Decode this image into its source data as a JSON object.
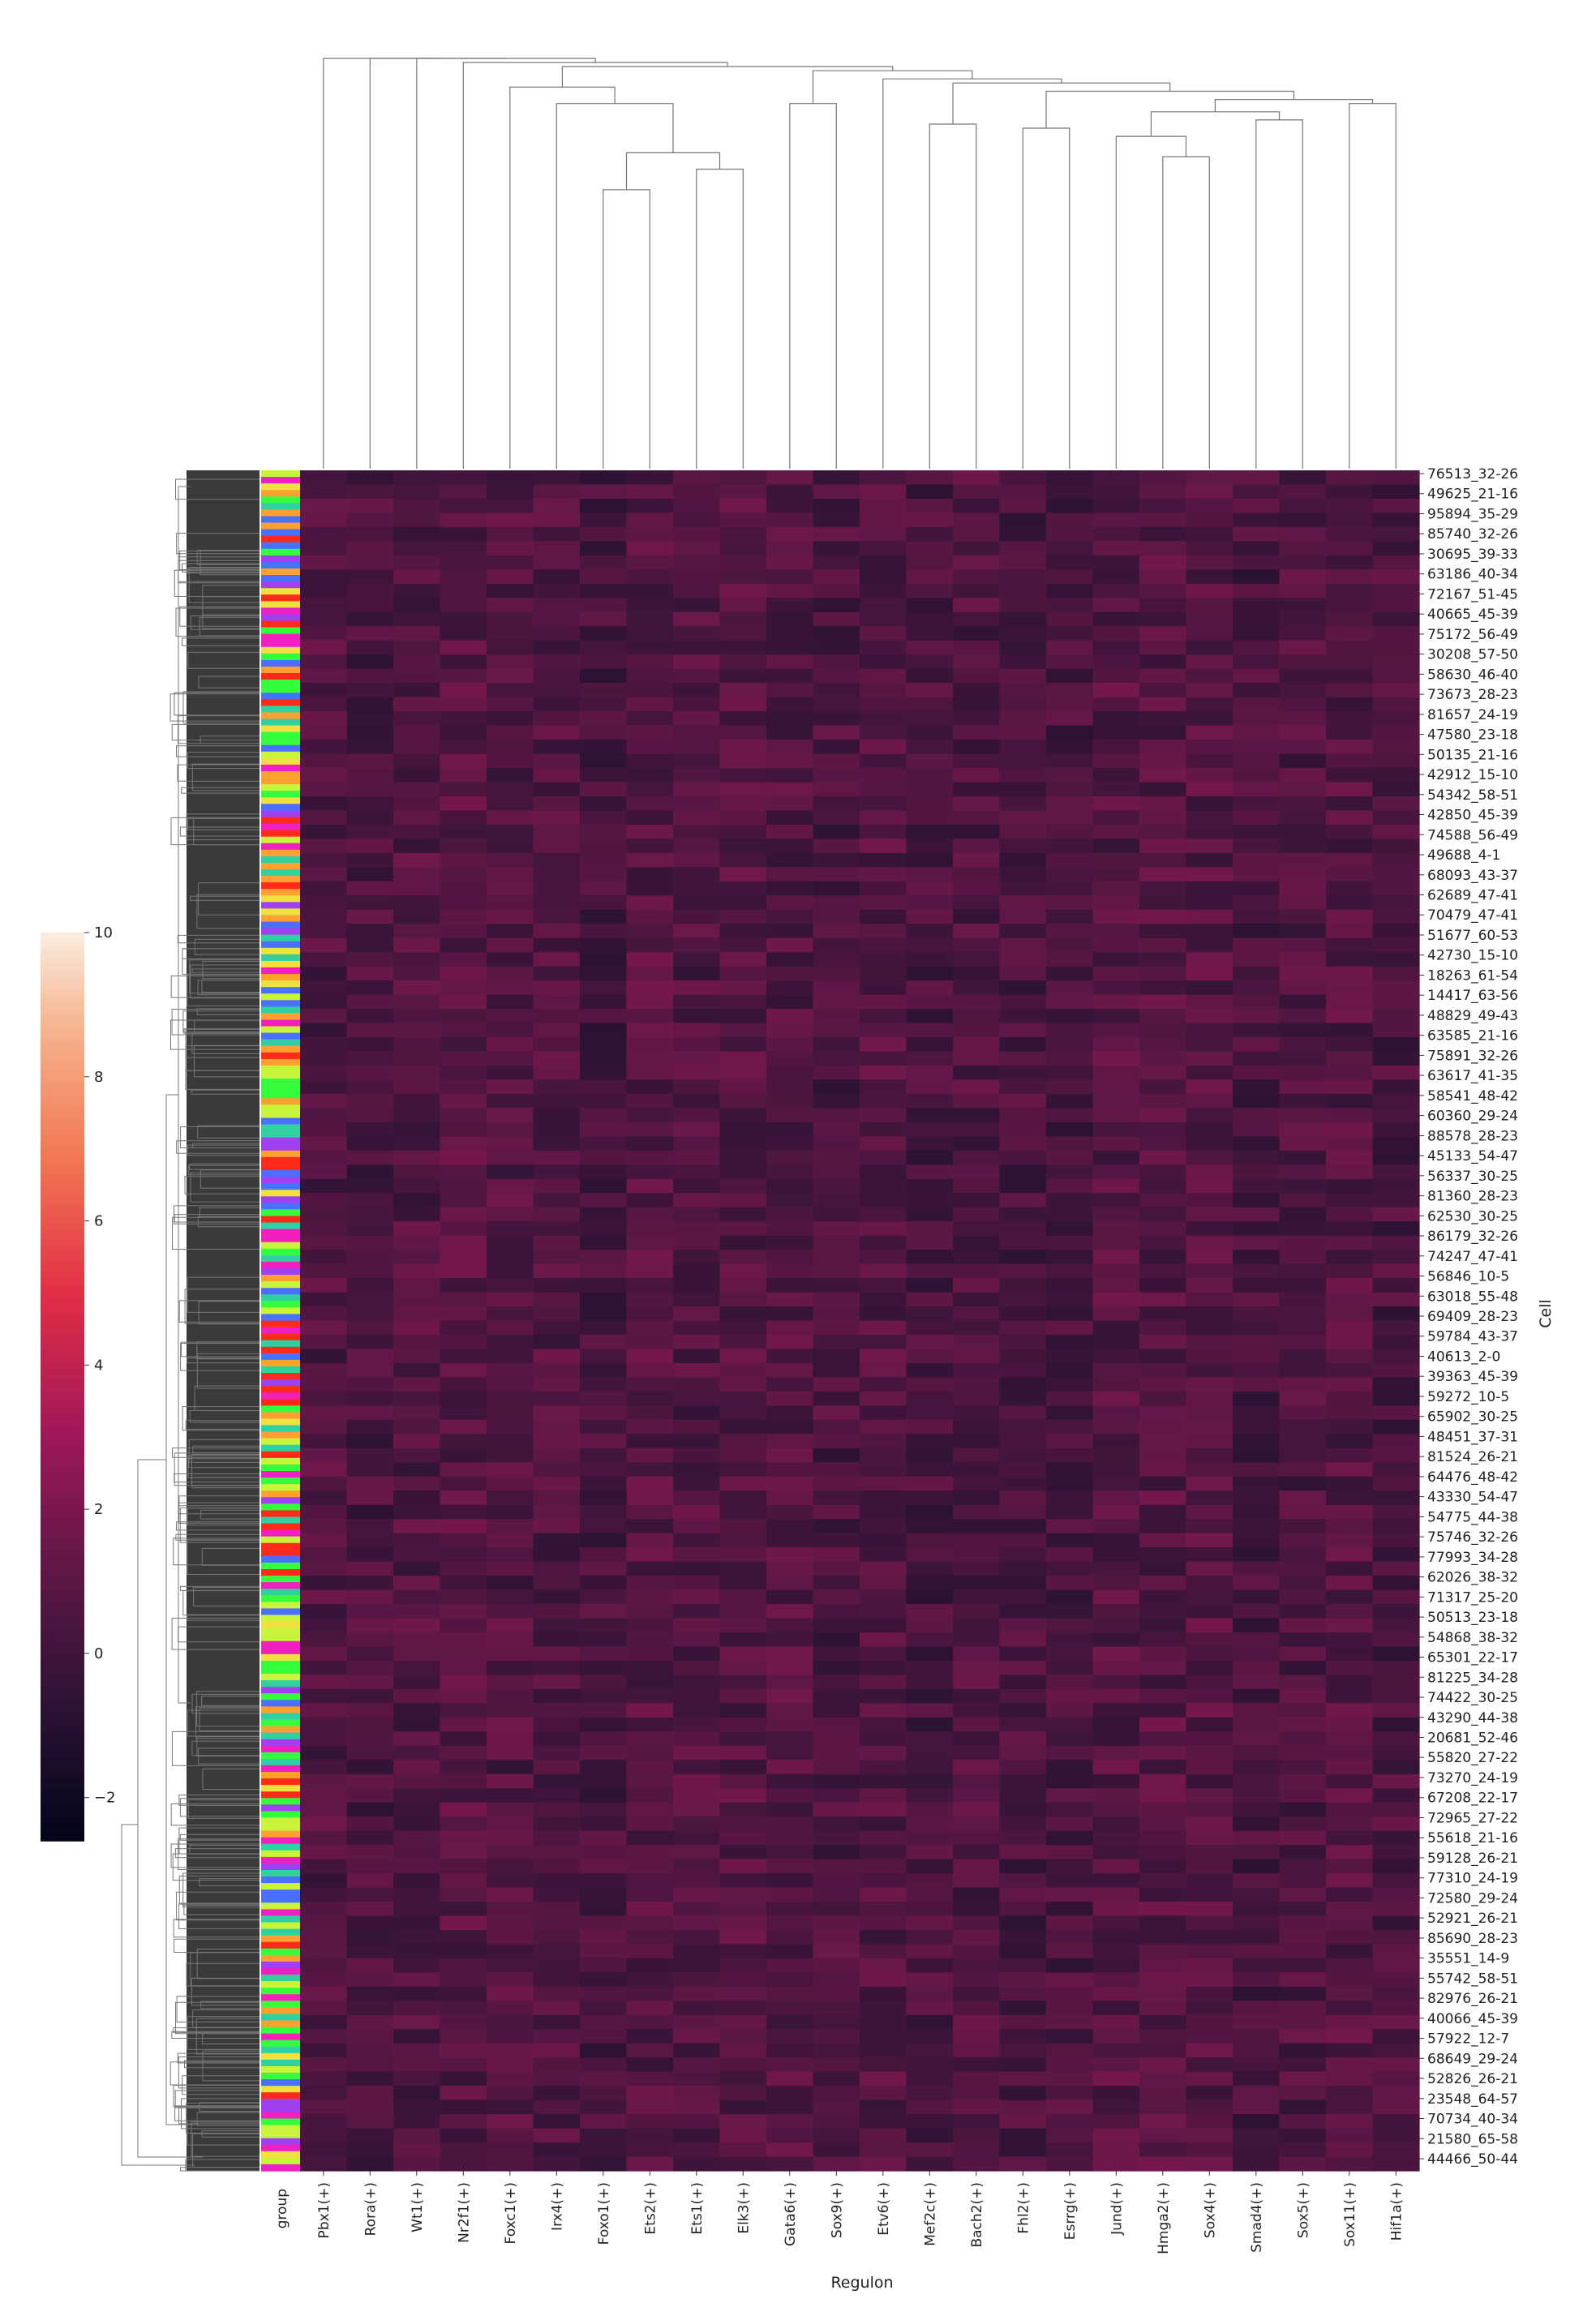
{
  "chart_data": {
    "type": "heatmap",
    "title": "",
    "xlabel": "Regulon",
    "ylabel": "Cell",
    "group_label": "group",
    "columns": [
      "Pbx1(+)",
      "Rora(+)",
      "Wt1(+)",
      "Nr2f1(+)",
      "Foxc1(+)",
      "Irx4(+)",
      "Foxo1(+)",
      "Ets2(+)",
      "Ets1(+)",
      "Elk3(+)",
      "Gata6(+)",
      "Sox9(+)",
      "Etv6(+)",
      "Mef2c(+)",
      "Bach2(+)",
      "Fhl2(+)",
      "Esrrg(+)",
      "Jund(+)",
      "Hmga2(+)",
      "Sox4(+)",
      "Smad4(+)",
      "Sox5(+)",
      "Sox11(+)",
      "Hif1a(+)"
    ],
    "row_labels": [
      "76513_32-26",
      "49625_21-16",
      "95894_35-29",
      "85740_32-26",
      "30695_39-33",
      "63186_40-34",
      "72167_51-45",
      "40665_45-39",
      "75172_56-49",
      "30208_57-50",
      "58630_46-40",
      "73673_28-23",
      "81657_24-19",
      "47580_23-18",
      "50135_21-16",
      "42912_15-10",
      "54342_58-51",
      "42850_45-39",
      "74588_56-49",
      "49688_4-1",
      "68093_43-37",
      "62689_47-41",
      "70479_47-41",
      "51677_60-53",
      "42730_15-10",
      "18263_61-54",
      "14417_63-56",
      "48829_49-43",
      "63585_21-16",
      "75891_32-26",
      "63617_41-35",
      "58541_48-42",
      "60360_29-24",
      "88578_28-23",
      "45133_54-47",
      "56337_30-25",
      "81360_28-23",
      "62530_30-25",
      "86179_32-26",
      "74247_47-41",
      "56846_10-5",
      "63018_55-48",
      "69409_28-23",
      "59784_43-37",
      "40613_2-0",
      "39363_45-39",
      "59272_10-5",
      "65902_30-25",
      "48451_37-31",
      "81524_26-21",
      "64476_48-42",
      "43330_54-47",
      "54775_44-38",
      "75746_32-26",
      "77993_34-28",
      "62026_38-32",
      "71317_25-20",
      "50513_23-18",
      "54868_38-32",
      "65301_22-17",
      "81225_34-28",
      "74422_30-25",
      "43290_44-38",
      "20681_52-46",
      "55820_27-22",
      "73270_24-19",
      "67208_22-17",
      "72965_27-22",
      "55618_21-16",
      "59128_26-21",
      "77310_24-19",
      "72580_29-24",
      "52921_26-21",
      "85690_28-23",
      "35551_14-9",
      "55742_58-51",
      "82976_26-21",
      "40066_45-39",
      "57922_12-7",
      "68649_29-24",
      "52826_26-21",
      "23548_64-57",
      "70734_40-34",
      "21580_65-58",
      "44466_50-44"
    ],
    "colorbar": {
      "min": -2.6,
      "max": 10,
      "ticks": [
        -2,
        0,
        2,
        4,
        6,
        8,
        10
      ],
      "colormap": "rocket"
    },
    "column_dendrogram": true,
    "row_dendrogram": true,
    "group_colors": [
      "#ff2a1a",
      "#33ff3d",
      "#c8f53a",
      "#f0e040",
      "#ffa030",
      "#a040f0",
      "#4a70ff",
      "#f020c0",
      "#30d0a0"
    ],
    "background_color": "#3d1232"
  }
}
